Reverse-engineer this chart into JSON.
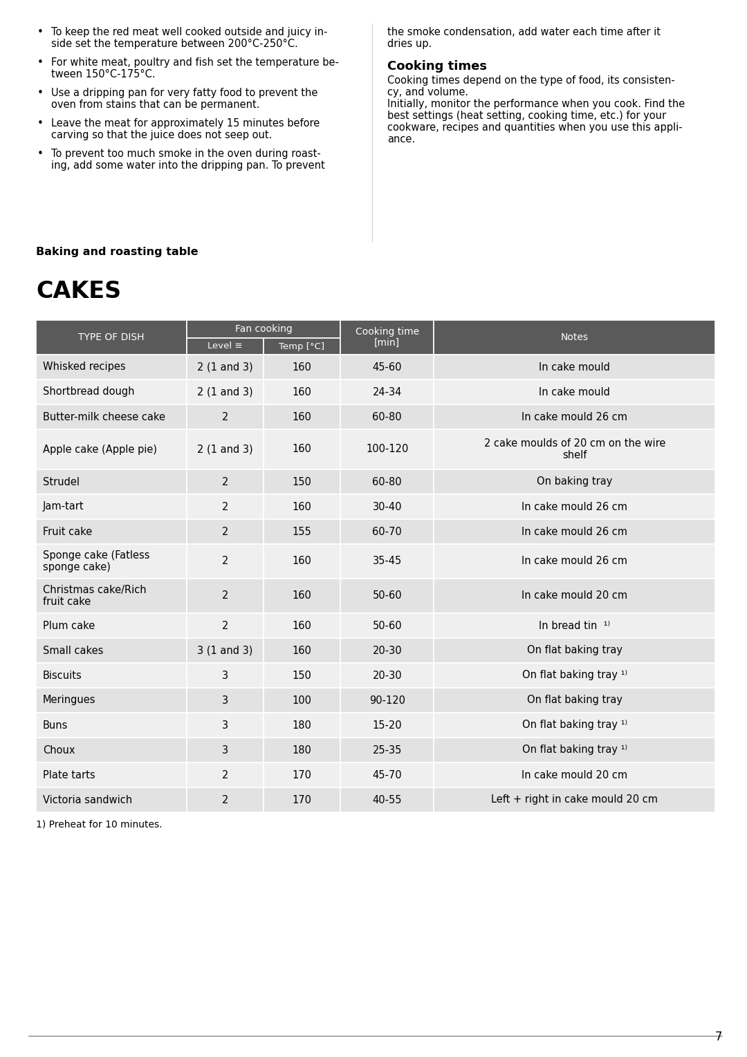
{
  "page_bg": "#ffffff",
  "page_number": "7",
  "right_text_continuation": "the smoke condensation, add water each time after it\ndries up.",
  "cooking_times_title": "Cooking times",
  "cooking_times_body_lines": [
    "Cooking times depend on the type of food, its consisten-",
    "cy, and volume.",
    "Initially, monitor the performance when you cook. Find the",
    "best settings (heat setting, cooking time, etc.) for your",
    "cookware, recipes and quantities when you use this appli-",
    "ance."
  ],
  "baking_roasting_label": "Baking and roasting table",
  "cakes_title": "CAKES",
  "header_bg": "#5a5a5a",
  "header_fg": "#ffffff",
  "row_colors": [
    "#e2e2e2",
    "#efefef",
    "#e2e2e2",
    "#efefef",
    "#e2e2e2",
    "#efefef",
    "#e2e2e2",
    "#efefef",
    "#e2e2e2",
    "#efefef",
    "#e2e2e2",
    "#efefef",
    "#e2e2e2",
    "#efefef",
    "#e2e2e2",
    "#efefef",
    "#e2e2e2"
  ],
  "fan_cooking_label": "Fan cooking",
  "table_rows": [
    [
      "Whisked recipes",
      "2 (1 and 3)",
      "160",
      "45-60",
      "In cake mould"
    ],
    [
      "Shortbread dough",
      "2 (1 and 3)",
      "160",
      "24-34",
      "In cake mould"
    ],
    [
      "Butter-milk cheese cake",
      "2",
      "160",
      "60-80",
      "In cake mould 26 cm"
    ],
    [
      "Apple cake (Apple pie)",
      "2 (1 and 3)",
      "160",
      "100-120",
      "2 cake moulds of 20 cm on the wire\nshelf"
    ],
    [
      "Strudel",
      "2",
      "150",
      "60-80",
      "On baking tray"
    ],
    [
      "Jam-tart",
      "2",
      "160",
      "30-40",
      "In cake mould 26 cm"
    ],
    [
      "Fruit cake",
      "2",
      "155",
      "60-70",
      "In cake mould 26 cm"
    ],
    [
      "Sponge cake (Fatless\nsponge cake)",
      "2",
      "160",
      "35-45",
      "In cake mould 26 cm"
    ],
    [
      "Christmas cake/Rich\nfruit cake",
      "2",
      "160",
      "50-60",
      "In cake mould 20 cm"
    ],
    [
      "Plum cake",
      "2",
      "160",
      "50-60",
      "In bread tin ¹)"
    ],
    [
      "Small cakes",
      "3 (1 and 3)",
      "160",
      "20-30",
      "On flat baking tray"
    ],
    [
      "Biscuits",
      "3",
      "150",
      "20-30",
      "On flat baking tray¹)"
    ],
    [
      "Meringues",
      "3",
      "100",
      "90-120",
      "On flat baking tray"
    ],
    [
      "Buns",
      "3",
      "180",
      "15-20",
      "On flat baking tray¹)"
    ],
    [
      "Choux",
      "3",
      "180",
      "25-35",
      "On flat baking tray¹)"
    ],
    [
      "Plate tarts",
      "2",
      "170",
      "45-70",
      "In cake mould 20 cm"
    ],
    [
      "Victoria sandwich",
      "2",
      "170",
      "40-55",
      "Left + right in cake mould 20 cm"
    ]
  ],
  "footnote": "1) Preheat for 10 minutes.",
  "divider_color": "#999999",
  "bullet_lines": [
    [
      "To keep the red meat well cooked outside and juicy in-",
      "side set the temperature between 200°C-250°C."
    ],
    [
      "For white meat, poultry and fish set the temperature be-",
      "tween 150°C-175°C."
    ],
    [
      "Use a dripping pan for very fatty food to prevent the",
      "oven from stains that can be permanent."
    ],
    [
      "Leave the meat for approximately 15 minutes before",
      "carving so that the juice does not seep out."
    ],
    [
      "To prevent too much smoke in the oven during roast-",
      "ing, add some water into the dripping pan. To prevent"
    ]
  ]
}
